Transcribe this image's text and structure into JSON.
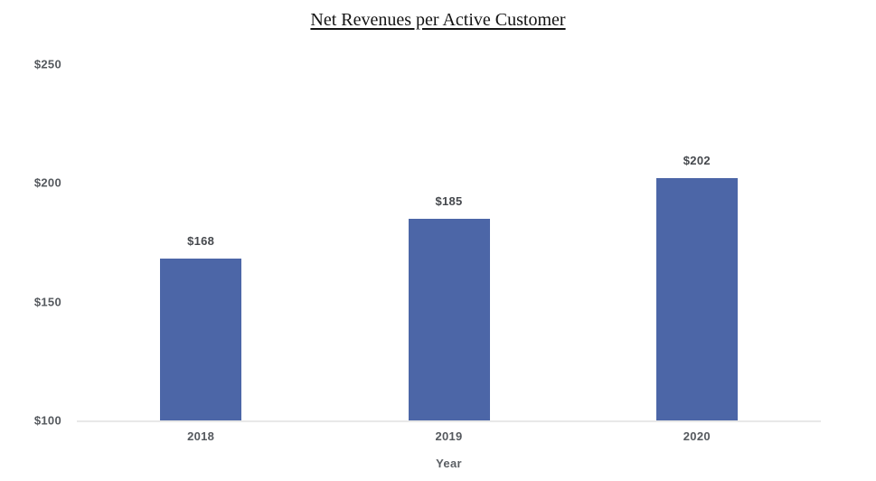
{
  "page": {
    "background_color": "#ffffff"
  },
  "chart_data": {
    "type": "bar",
    "title": "Net Revenues per Active Customer",
    "categories": [
      "2018",
      "2019",
      "2020"
    ],
    "values": [
      168,
      185,
      202
    ],
    "value_labels": [
      "$168",
      "$185",
      "$202"
    ],
    "xlabel": "Year",
    "ylabel": "",
    "ylim": [
      100,
      250
    ],
    "yticks": [
      250,
      200,
      150,
      100
    ],
    "ytick_labels": [
      "$250",
      "$200",
      "$150",
      "$100"
    ],
    "grid": false,
    "legend_position": "none",
    "bar_color": "#4c66a7",
    "axis_line_color": "#e8e8e8",
    "tick_text_color": "#55595e",
    "value_label_color": "#45484d",
    "title_color": "#141414"
  }
}
